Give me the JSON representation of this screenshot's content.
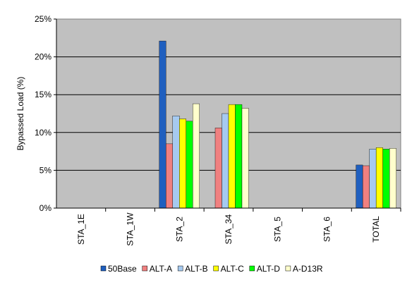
{
  "chart_data": {
    "type": "bar",
    "categories": [
      "STA_1E",
      "STA_1W",
      "STA_2",
      "STA_34",
      "STA_5",
      "STA_6",
      "TOTAL"
    ],
    "series": [
      {
        "name": "50Base",
        "color": "#1f5fbf",
        "values": [
          0,
          0,
          22.1,
          0,
          0,
          0,
          5.7
        ]
      },
      {
        "name": "ALT-A",
        "color": "#f08080",
        "values": [
          0,
          0,
          8.5,
          10.6,
          0,
          0,
          5.6
        ]
      },
      {
        "name": "ALT-B",
        "color": "#a6caf0",
        "values": [
          0,
          0,
          12.2,
          12.5,
          0,
          0,
          7.8
        ]
      },
      {
        "name": "ALT-C",
        "color": "#ffff00",
        "values": [
          0,
          0,
          11.8,
          13.7,
          0,
          0,
          8.0
        ]
      },
      {
        "name": "ALT-D",
        "color": "#00ff00",
        "values": [
          0,
          0,
          11.5,
          13.7,
          0,
          0,
          7.8
        ]
      },
      {
        "name": "A-D13R",
        "color": "#ffffcc",
        "values": [
          0,
          0,
          13.8,
          13.2,
          0,
          0,
          7.9
        ]
      }
    ],
    "ylabel": "Bypassed Load (%)",
    "xlabel": "",
    "ylim": [
      0,
      25
    ],
    "yticks": [
      0,
      5,
      10,
      15,
      20,
      25
    ],
    "ytick_labels": [
      "0%",
      "5%",
      "10%",
      "15%",
      "20%",
      "25%"
    ],
    "grid": true,
    "plot_background": "#c0c0c0",
    "legend_position": "bottom"
  }
}
